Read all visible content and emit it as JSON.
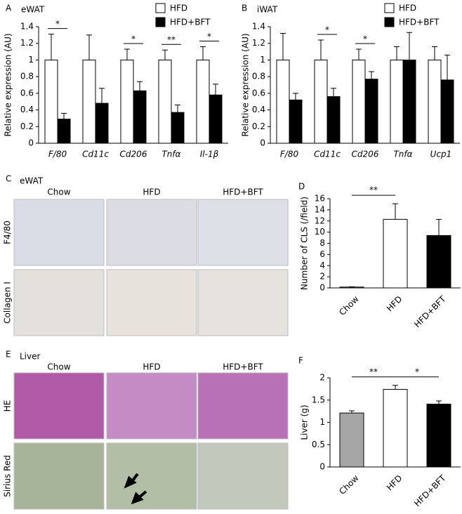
{
  "chart_data": [
    {
      "type": "bar",
      "panel_label": "A",
      "title": "eWAT",
      "y_label": "Relative expression (AU)",
      "categories": [
        "F/80",
        "Cd11c",
        "Cd206",
        "Tnfα",
        "Il-1β"
      ],
      "series": [
        {
          "name": "HFD",
          "color": "#ffffff",
          "values": [
            1,
            1,
            1,
            1,
            1
          ],
          "errors": [
            0.31,
            0.3,
            0.13,
            0.12,
            0.16
          ]
        },
        {
          "name": "HFD+BFT",
          "color": "#000000",
          "values": [
            0.29,
            0.48,
            0.63,
            0.37,
            0.58
          ],
          "errors": [
            0.07,
            0.18,
            0.11,
            0.09,
            0.13
          ]
        }
      ],
      "significance_labels": [
        "*",
        null,
        "*",
        "**",
        "*"
      ],
      "ylim": [
        0,
        1.4
      ],
      "yticks": [
        0,
        0.2,
        0.4,
        0.6,
        0.8,
        1,
        1.2,
        1.4
      ]
    },
    {
      "type": "bar",
      "panel_label": "B",
      "title": "iWAT",
      "y_label": "Relative expression (AU)",
      "categories": [
        "F/80",
        "Cd11c",
        "Cd206",
        "Tnfα",
        "Ucp1"
      ],
      "series": [
        {
          "name": "HFD",
          "color": "#ffffff",
          "values": [
            1,
            1,
            1,
            1,
            1
          ],
          "errors": [
            0.32,
            0.24,
            0.13,
            0.16,
            0.16
          ]
        },
        {
          "name": "HFD+BFT",
          "color": "#000000",
          "values": [
            0.52,
            0.56,
            0.77,
            1.0,
            0.76
          ],
          "errors": [
            0.08,
            0.1,
            0.09,
            0.33,
            0.3
          ]
        }
      ],
      "significance_labels": [
        null,
        "*",
        "*",
        null,
        null
      ],
      "ylim": [
        0,
        1.4
      ],
      "yticks": [
        0,
        0.2,
        0.4,
        0.6,
        0.8,
        1,
        1.2,
        1.4
      ]
    },
    {
      "type": "bar",
      "panel_label": "D",
      "y_label": "Number of CLS (/field)",
      "categories": [
        "Chow",
        "HFD",
        "HFD+BFT"
      ],
      "values": [
        0.15,
        12.3,
        9.4
      ],
      "errors": [
        0.05,
        2.8,
        2.9
      ],
      "colors": [
        "#a6a6a6",
        "#ffffff",
        "#000000"
      ],
      "pair_significance": [
        "**",
        null
      ],
      "ylim": [
        0,
        16
      ],
      "yticks": [
        0,
        2,
        4,
        6,
        8,
        10,
        12,
        14,
        16
      ]
    },
    {
      "type": "bar",
      "panel_label": "F",
      "y_label": "Liver (g)",
      "categories": [
        "Chow",
        "HFD",
        "HFD+BFT"
      ],
      "values": [
        1.21,
        1.74,
        1.41
      ],
      "errors": [
        0.05,
        0.09,
        0.07
      ],
      "colors": [
        "#a6a6a6",
        "#ffffff",
        "#000000"
      ],
      "pair_significance": [
        "**",
        "*"
      ],
      "ylim": [
        0,
        2
      ],
      "yticks": [
        0,
        0.5,
        1,
        1.5,
        2
      ]
    }
  ],
  "image_panels": [
    {
      "label": "C",
      "title": "eWAT",
      "columns": [
        "Chow",
        "HFD",
        "HFD+BFT"
      ],
      "rows": [
        "F4/80",
        "Collagen I"
      ]
    },
    {
      "label": "E",
      "title": "Liver",
      "columns": [
        "Chow",
        "HFD",
        "HFD+BFT"
      ],
      "rows": [
        "HE",
        "Sirius Red"
      ]
    }
  ]
}
